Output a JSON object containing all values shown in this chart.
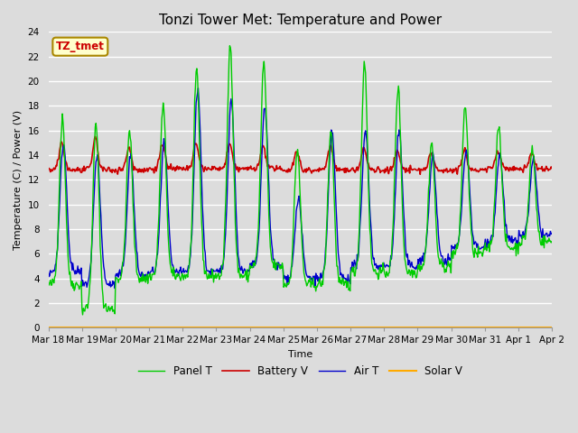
{
  "title": "Tonzi Tower Met: Temperature and Power",
  "xlabel": "Time",
  "ylabel": "Temperature (C) / Power (V)",
  "annotation": "TZ_tmet",
  "annotation_color": "#cc0000",
  "annotation_bg": "#ffffcc",
  "annotation_border": "#aa8800",
  "ylim": [
    0,
    24
  ],
  "yticks": [
    0,
    2,
    4,
    6,
    8,
    10,
    12,
    14,
    16,
    18,
    20,
    22,
    24
  ],
  "bg_color": "#dcdcdc",
  "plot_bg": "#dcdcdc",
  "grid_color": "#ffffff",
  "title_fontsize": 11,
  "axis_fontsize": 8,
  "tick_fontsize": 7.5,
  "legend_fontsize": 8.5,
  "line_colors": {
    "panel_t": "#00cc00",
    "battery_v": "#cc0000",
    "air_t": "#0000cc",
    "solar_v": "#ffaa00"
  },
  "line_widths": {
    "panel_t": 1.0,
    "battery_v": 1.2,
    "air_t": 1.0,
    "solar_v": 1.5
  },
  "legend_labels": [
    "Panel T",
    "Battery V",
    "Air T",
    "Solar V"
  ],
  "x_tick_labels": [
    "Mar 18",
    "Mar 19",
    "Mar 20",
    "Mar 21",
    "Mar 22",
    "Mar 23",
    "Mar 24",
    "Mar 25",
    "Mar 26",
    "Mar 27",
    "Mar 28",
    "Mar 29",
    "Mar 30",
    "Mar 31",
    "Apr 1",
    "Apr 2"
  ],
  "n_points": 720,
  "days": 15
}
